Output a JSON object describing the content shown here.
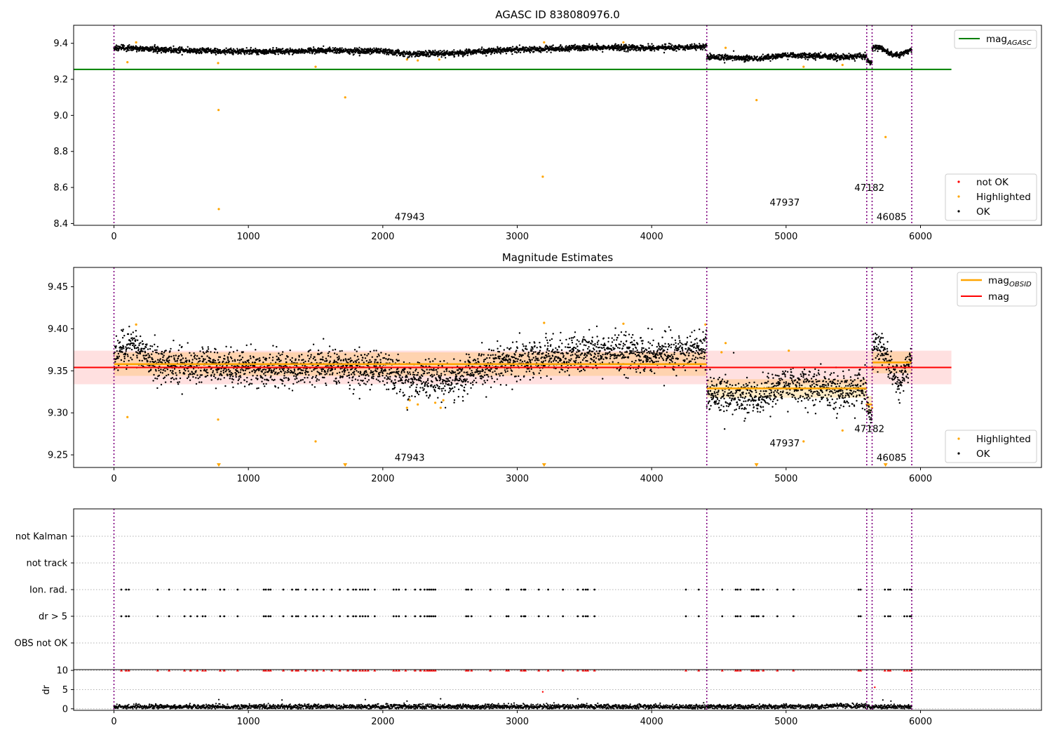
{
  "chart_data": [
    {
      "type": "scatter",
      "title": "AGASC ID 838080976.0",
      "xlabel": "",
      "ylabel": "",
      "xlim": [
        -300,
        6900
      ],
      "ylim": [
        8.39,
        9.5
      ],
      "xticks": [
        0,
        1000,
        2000,
        3000,
        4000,
        5000,
        6000
      ],
      "yticks": [
        8.4,
        8.6,
        8.8,
        9.0,
        9.2,
        9.4
      ],
      "ytick_labels": [
        "8.4",
        "8.6",
        "8.8",
        "9.0",
        "9.2",
        "9.4"
      ],
      "grid": false,
      "legend_top": {
        "position": "top-right",
        "entries": [
          {
            "label": "mag",
            "sub": "AGASC",
            "color": "#008000"
          }
        ]
      },
      "legend_bottom": {
        "position": "bottom-right",
        "entries": [
          {
            "label": "not OK",
            "color": "#ff0000"
          },
          {
            "label": "Highlighted",
            "color": "#ffa500"
          },
          {
            "label": "OK",
            "color": "#000000"
          }
        ]
      },
      "mag_agasc": 9.255,
      "mag_agasc_xrange": [
        -300,
        6230
      ],
      "obsid_boundaries": [
        0,
        4410,
        5600,
        5640,
        5935
      ],
      "segments": [
        {
          "x0": 0,
          "x1": 4410,
          "trend": [
            [
              0,
              9.375
            ],
            [
              400,
              9.365
            ],
            [
              800,
              9.355
            ],
            [
              1200,
              9.355
            ],
            [
              1600,
              9.36
            ],
            [
              2000,
              9.355
            ],
            [
              2200,
              9.34
            ],
            [
              2500,
              9.345
            ],
            [
              3000,
              9.365
            ],
            [
              3500,
              9.375
            ],
            [
              4000,
              9.375
            ],
            [
              4410,
              9.38
            ]
          ],
          "noise": 0.008
        },
        {
          "x0": 4410,
          "x1": 5600,
          "trend": [
            [
              4410,
              9.325
            ],
            [
              4600,
              9.32
            ],
            [
              4800,
              9.315
            ],
            [
              5000,
              9.335
            ],
            [
              5200,
              9.33
            ],
            [
              5400,
              9.325
            ],
            [
              5600,
              9.33
            ]
          ],
          "noise": 0.008
        },
        {
          "x0": 5600,
          "x1": 5640,
          "trend": [
            [
              5600,
              9.3
            ],
            [
              5640,
              9.3
            ]
          ],
          "noise": 0.008
        },
        {
          "x0": 5640,
          "x1": 5935,
          "trend": [
            [
              5640,
              9.37
            ],
            [
              5700,
              9.375
            ],
            [
              5800,
              9.33
            ],
            [
              5935,
              9.36
            ]
          ],
          "noise": 0.008
        }
      ],
      "highlighted": [
        [
          100,
          9.295
        ],
        [
          165,
          9.405
        ],
        [
          775,
          9.29
        ],
        [
          778,
          9.03
        ],
        [
          780,
          8.48
        ],
        [
          1500,
          9.27
        ],
        [
          1720,
          9.1
        ],
        [
          2180,
          9.31
        ],
        [
          2260,
          9.305
        ],
        [
          2420,
          9.31
        ],
        [
          3190,
          8.66
        ],
        [
          3200,
          9.405
        ],
        [
          3790,
          9.405
        ],
        [
          4550,
          9.375
        ],
        [
          4780,
          9.085
        ],
        [
          5130,
          9.27
        ],
        [
          5420,
          9.28
        ],
        [
          5740,
          8.88
        ]
      ],
      "annotations": [
        {
          "text": "47943",
          "x": 2200,
          "y": 8.42
        },
        {
          "text": "47937",
          "x": 4990,
          "y": 8.5
        },
        {
          "text": "47182",
          "x": 5620,
          "y": 8.58
        },
        {
          "text": "46085",
          "x": 5785,
          "y": 8.42
        }
      ]
    },
    {
      "type": "scatter",
      "title": "Magnitude Estimates",
      "xlabel": "",
      "ylabel": "",
      "xlim": [
        -300,
        6900
      ],
      "ylim": [
        9.235,
        9.473
      ],
      "xticks": [
        0,
        1000,
        2000,
        3000,
        4000,
        5000,
        6000
      ],
      "yticks": [
        9.25,
        9.3,
        9.35,
        9.4,
        9.45
      ],
      "ytick_labels": [
        "9.25",
        "9.30",
        "9.35",
        "9.40",
        "9.45"
      ],
      "grid": false,
      "legend": {
        "position": "top-right",
        "entries": [
          {
            "label": "mag",
            "sub": "OBSID",
            "color": "#ffa500"
          },
          {
            "label": "mag",
            "color": "#ff0000"
          }
        ]
      },
      "legend_bottom": {
        "position": "bottom-right",
        "entries": [
          {
            "label": "Highlighted",
            "color": "#ffa500"
          },
          {
            "label": "OK",
            "color": "#000000"
          }
        ]
      },
      "mag": 9.354,
      "mag_band": [
        9.334,
        9.374
      ],
      "mag_xrange": [
        -300,
        6230
      ],
      "mag_obsid": [
        {
          "x0": 0,
          "x1": 4410,
          "value": 9.358,
          "band": [
            9.344,
            9.372
          ]
        },
        {
          "x0": 4410,
          "x1": 5600,
          "value": 9.329,
          "band": [
            9.318,
            9.34
          ]
        },
        {
          "x0": 5600,
          "x1": 5640,
          "value": 9.31,
          "band": [
            9.3,
            9.32
          ]
        },
        {
          "x0": 5640,
          "x1": 5935,
          "value": 9.36,
          "band": [
            9.347,
            9.373
          ]
        }
      ],
      "segments": [
        {
          "x0": 0,
          "x1": 4410,
          "trend": [
            [
              0,
              9.37
            ],
            [
              150,
              9.38
            ],
            [
              300,
              9.36
            ],
            [
              800,
              9.355
            ],
            [
              1200,
              9.352
            ],
            [
              1600,
              9.355
            ],
            [
              2000,
              9.35
            ],
            [
              2200,
              9.34
            ],
            [
              2500,
              9.34
            ],
            [
              2800,
              9.355
            ],
            [
              3200,
              9.368
            ],
            [
              3600,
              9.372
            ],
            [
              4000,
              9.37
            ],
            [
              4410,
              9.375
            ]
          ],
          "noise": 0.011
        },
        {
          "x0": 4410,
          "x1": 5600,
          "trend": [
            [
              4410,
              9.325
            ],
            [
              4600,
              9.32
            ],
            [
              4800,
              9.318
            ],
            [
              5000,
              9.335
            ],
            [
              5200,
              9.33
            ],
            [
              5400,
              9.328
            ],
            [
              5600,
              9.33
            ]
          ],
          "noise": 0.011
        },
        {
          "x0": 5600,
          "x1": 5640,
          "trend": [
            [
              5600,
              9.305
            ],
            [
              5640,
              9.3
            ]
          ],
          "noise": 0.008
        },
        {
          "x0": 5640,
          "x1": 5935,
          "trend": [
            [
              5640,
              9.37
            ],
            [
              5720,
              9.375
            ],
            [
              5820,
              9.335
            ],
            [
              5935,
              9.36
            ]
          ],
          "noise": 0.011
        }
      ],
      "highlighted": [
        [
          100,
          9.295
        ],
        [
          165,
          9.405
        ],
        [
          775,
          9.292
        ],
        [
          1500,
          9.266
        ],
        [
          2180,
          9.306
        ],
        [
          2200,
          9.315
        ],
        [
          2260,
          9.31
        ],
        [
          2390,
          9.312
        ],
        [
          2430,
          9.306
        ],
        [
          2450,
          9.315
        ],
        [
          3200,
          9.407
        ],
        [
          3790,
          9.406
        ],
        [
          4400,
          9.405
        ],
        [
          4520,
          9.372
        ],
        [
          4550,
          9.383
        ],
        [
          5020,
          9.374
        ],
        [
          5130,
          9.266
        ],
        [
          5420,
          9.279
        ],
        [
          5600,
          9.31
        ],
        [
          5640,
          9.306
        ]
      ],
      "off_scale_x": [
        780,
        1720,
        3200,
        4780,
        5740
      ],
      "annotations": [
        {
          "text": "47943",
          "x": 2200,
          "y": 9.243
        },
        {
          "text": "47937",
          "x": 4990,
          "y": 9.26
        },
        {
          "text": "47182",
          "x": 5620,
          "y": 9.277
        },
        {
          "text": "46085",
          "x": 5785,
          "y": 9.243
        }
      ]
    },
    {
      "type": "scatter",
      "title": "",
      "xlabel": "",
      "ylabel": "",
      "xlim": [
        -300,
        6900
      ],
      "categories": [
        "OBS not OK",
        "dr > 5",
        "Ion. rad.",
        "not track",
        "not Kalman"
      ],
      "grid": true,
      "flag_x": [
        55,
        90,
        110,
        325,
        410,
        525,
        570,
        620,
        660,
        680,
        790,
        820,
        920,
        1115,
        1130,
        1150,
        1165,
        1260,
        1325,
        1355,
        1370,
        1425,
        1480,
        1510,
        1560,
        1620,
        1680,
        1740,
        1780,
        1800,
        1830,
        1850,
        1870,
        1890,
        1940,
        2080,
        2100,
        2120,
        2170,
        2240,
        2280,
        2310,
        2330,
        2345,
        2360,
        2375,
        2390,
        2620,
        2635,
        2660,
        2800,
        2920,
        2935,
        3030,
        3050,
        3060,
        3160,
        3230,
        3340,
        3450,
        3490,
        3510,
        3525,
        3575,
        4255,
        4350,
        4525,
        4625,
        4640,
        4660,
        4745,
        4760,
        4780,
        4795,
        4830,
        4935,
        5055,
        5540,
        5555,
        5735,
        5760,
        5775,
        5880,
        5900,
        5920,
        5930
      ]
    },
    {
      "type": "scatter",
      "title": "",
      "xlabel": "",
      "ylabel": "dr",
      "xlim": [
        -300,
        6900
      ],
      "ylim": [
        -0.4,
        10.2
      ],
      "yticks": [
        0,
        5,
        10
      ],
      "ytick_labels": [
        "0",
        "5",
        "10"
      ],
      "xticks": [
        0,
        1000,
        2000,
        3000,
        4000,
        5000,
        6000
      ],
      "grid": true,
      "clip_value": 10,
      "extra_red": [
        [
          3190,
          4.4
        ],
        [
          5660,
          5.6
        ]
      ],
      "extra_black": [
        [
          780,
          2.4
        ],
        [
          1250,
          2.3
        ],
        [
          1870,
          2.4
        ],
        [
          2180,
          2.0
        ],
        [
          2430,
          2.6
        ],
        [
          3450,
          2.6
        ],
        [
          5720,
          2.3
        ],
        [
          5780,
          2.0
        ]
      ]
    }
  ]
}
